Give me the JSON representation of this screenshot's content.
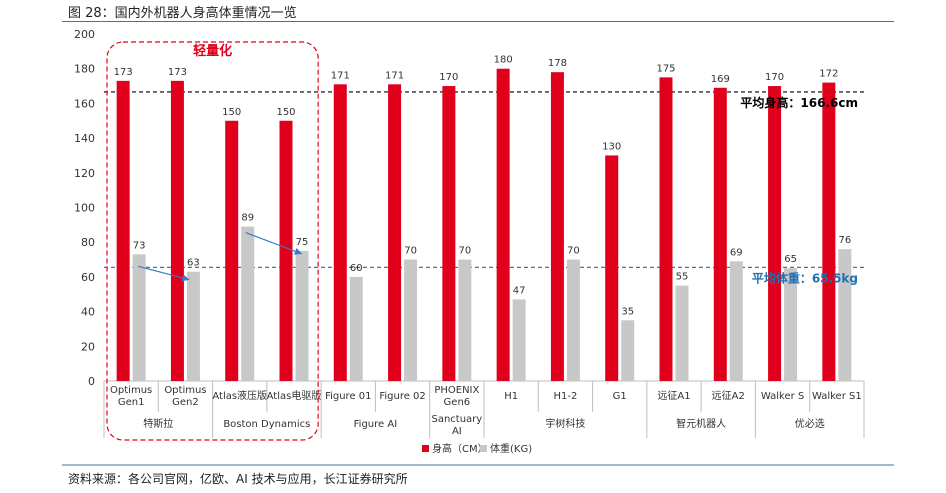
{
  "figure": {
    "title": "图 28：国内外机器人身高体重情况一览",
    "source": "资料来源：各公司官网，亿欧、AI 技术与应用，长江证券研究所"
  },
  "chart_data": {
    "type": "bar",
    "ylim": [
      0,
      200
    ],
    "yticks": [
      0,
      20,
      40,
      60,
      80,
      100,
      120,
      140,
      160,
      180,
      200
    ],
    "grid": false,
    "legend_position": "bottom-center",
    "categories": [
      "Optimus Gen1",
      "Optimus Gen2",
      "Atlas液压版",
      "Atlas电驱版",
      "Figure 01",
      "Figure 02",
      "PHOENIX Gen6",
      "H1",
      "H1-2",
      "G1",
      "远征A1",
      "远征A2",
      "Walker S",
      "Walker S1"
    ],
    "category_lines": [
      [
        "Optimus",
        "Gen1"
      ],
      [
        "Optimus",
        "Gen2"
      ],
      [
        "Atlas液压版"
      ],
      [
        "Atlas电驱版"
      ],
      [
        "Figure 01"
      ],
      [
        "Figure 02"
      ],
      [
        "PHOENIX",
        "Gen6"
      ],
      [
        "H1"
      ],
      [
        "H1-2"
      ],
      [
        "G1"
      ],
      [
        "远征A1"
      ],
      [
        "远征A2"
      ],
      [
        "Walker S"
      ],
      [
        "Walker S1"
      ]
    ],
    "groups": [
      {
        "lines": [
          "特斯拉"
        ],
        "count": 2
      },
      {
        "lines": [
          "Boston Dynamics"
        ],
        "count": 2
      },
      {
        "lines": [
          "Figure AI"
        ],
        "count": 2
      },
      {
        "lines": [
          "Sanctuary",
          "AI"
        ],
        "count": 1
      },
      {
        "lines": [
          "宇树科技"
        ],
        "count": 3
      },
      {
        "lines": [
          "智元机器人"
        ],
        "count": 2
      },
      {
        "lines": [
          "优必选"
        ],
        "count": 2
      }
    ],
    "series": [
      {
        "name": "身高（CM）",
        "color": "#e0001b",
        "values": [
          173,
          173,
          150,
          150,
          171,
          171,
          170,
          180,
          178,
          130,
          175,
          169,
          170,
          172
        ]
      },
      {
        "name": "体重(KG)",
        "color": "#c8c8c8",
        "values": [
          73,
          63,
          89,
          75,
          60,
          70,
          70,
          47,
          70,
          35,
          55,
          69,
          65,
          76
        ]
      }
    ],
    "reference_lines": [
      {
        "label": "平均身高：166.6cm",
        "value": 166.6,
        "color": "#000000",
        "text_color": "#000000"
      },
      {
        "label": "平均体重：65.5kg",
        "value": 65.5,
        "color": "#2a7fc4",
        "text_color": "#1f6fb5"
      }
    ],
    "annotation": {
      "label": "轻量化",
      "color": "#e0001b",
      "span_categories": [
        0,
        3
      ]
    }
  }
}
